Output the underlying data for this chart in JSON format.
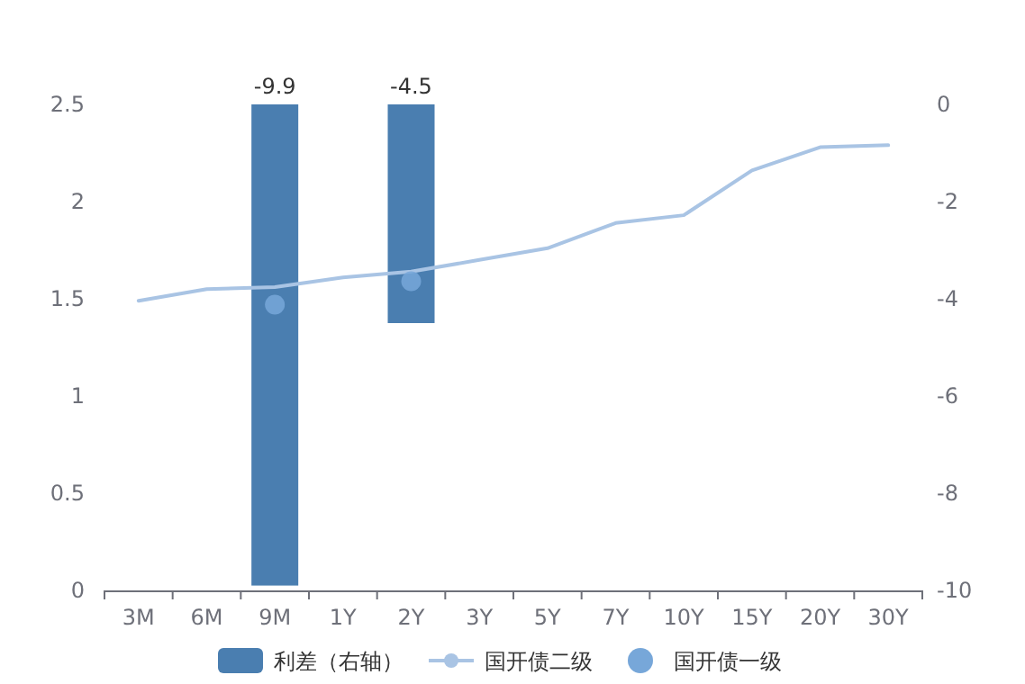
{
  "chart_data": {
    "type": "bar",
    "categories": [
      "3M",
      "6M",
      "9M",
      "1Y",
      "2Y",
      "3Y",
      "5Y",
      "7Y",
      "10Y",
      "15Y",
      "20Y",
      "30Y"
    ],
    "series": [
      {
        "name": "利差（右轴）",
        "axis": "y2",
        "color": "#4a7eb0",
        "values": [
          null,
          null,
          -9.9,
          null,
          -4.5,
          null,
          null,
          null,
          null,
          null,
          null,
          null
        ],
        "value_labels": [
          null,
          null,
          "-9.9",
          null,
          "-4.5",
          null,
          null,
          null,
          null,
          null,
          null,
          null
        ]
      },
      {
        "name": "国开债二级",
        "type": "line",
        "color": "#a9c4e4",
        "marker": "none",
        "line_style": "solid",
        "values": [
          1.49,
          1.55,
          1.56,
          1.61,
          1.64,
          1.7,
          1.76,
          1.89,
          1.93,
          2.16,
          2.28,
          2.29
        ]
      },
      {
        "name": "国开债一级",
        "type": "scatter",
        "color": "#77a7d9",
        "marker": "circle",
        "values": [
          null,
          null,
          1.47,
          null,
          1.59,
          null,
          null,
          null,
          null,
          null,
          null,
          null
        ]
      }
    ],
    "ylim": [
      0,
      2.5
    ],
    "yticks": [
      0,
      0.5,
      1,
      1.5,
      2,
      2.5
    ],
    "y2lim": [
      -10,
      0
    ],
    "y2ticks": [
      -10,
      -8,
      -6,
      -4,
      -2,
      0
    ],
    "grid": false,
    "legend": "bottom"
  }
}
